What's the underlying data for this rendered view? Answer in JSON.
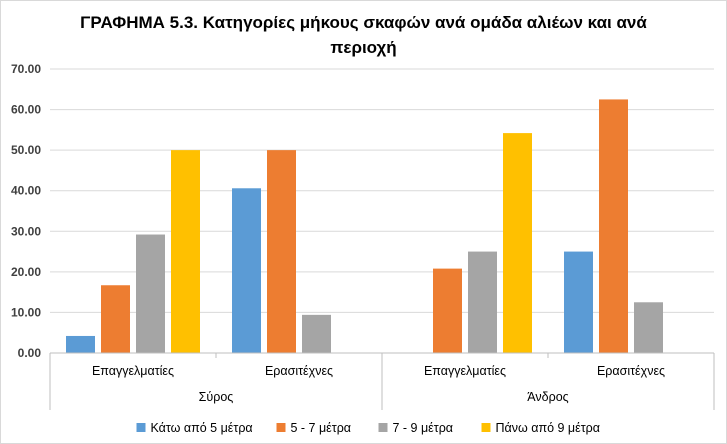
{
  "chart_data": {
    "type": "bar",
    "title_lines": [
      "ΓΡΑΦΗΜΑ 5.3. Κατηγορίες μήκους σκαφών ανά ομάδα αλιέων και ανά",
      "περιοχή"
    ],
    "groups": [
      {
        "name": "Σύρος",
        "categories": [
          "Επαγγελματίες",
          "Ερασιτέχνες"
        ]
      },
      {
        "name": "Άνδρος",
        "categories": [
          "Επαγγελματίες",
          "Ερασιτέχνες"
        ]
      }
    ],
    "categories": [
      "Επαγγελματίες",
      "Ερασιτέχνες",
      "Επαγγελματίες",
      "Ερασιτέχνες"
    ],
    "series": [
      {
        "name": "Κάτω από 5 μέτρα",
        "color": "#5b9bd5",
        "values": [
          4.2,
          40.6,
          0,
          25.0
        ]
      },
      {
        "name": "5 - 7 μέτρα",
        "color": "#ed7d31",
        "values": [
          16.7,
          50.0,
          20.8,
          62.5
        ]
      },
      {
        "name": "7 - 9 μέτρα",
        "color": "#a5a5a5",
        "values": [
          29.2,
          9.4,
          25.0,
          12.5
        ]
      },
      {
        "name": "Πάνω από 9 μέτρα",
        "color": "#ffc000",
        "values": [
          50.0,
          0,
          54.2,
          0
        ]
      }
    ],
    "ylim": [
      0,
      70
    ],
    "yticks": [
      "0.00",
      "10.00",
      "20.00",
      "30.00",
      "40.00",
      "50.00",
      "60.00",
      "70.00"
    ],
    "grid": true,
    "legend_position": "bottom"
  }
}
